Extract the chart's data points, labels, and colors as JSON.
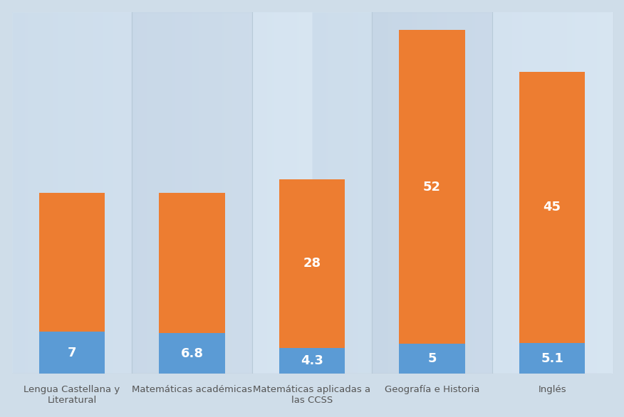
{
  "categories": [
    "Lengua Castellana y\nLiteratural",
    "Matemáticas académicas",
    "Matemáticas aplicadas a\nlas CCSS",
    "Geografía e Historia",
    "Inglés"
  ],
  "blue_values": [
    7,
    6.8,
    4.3,
    5,
    5.1
  ],
  "orange_values": [
    23,
    23.2,
    28,
    52,
    45
  ],
  "blue_labels": [
    "7",
    "6.8",
    "4.3",
    "5",
    "5.1"
  ],
  "orange_labels": [
    "",
    "",
    "28",
    "52",
    "45"
  ],
  "blue_color": "#5b9bd5",
  "orange_color": "#ed7d31",
  "bg_gradient_top": "#c9d9ea",
  "bg_gradient_bottom": "#dce8f4",
  "strip_light": "#d4e3f0",
  "strip_dark": "#c5d5e5",
  "text_color": "#ffffff",
  "label_fontsize": 13,
  "tick_fontsize": 9.5,
  "bar_width": 0.55,
  "ylim": [
    0,
    60
  ]
}
